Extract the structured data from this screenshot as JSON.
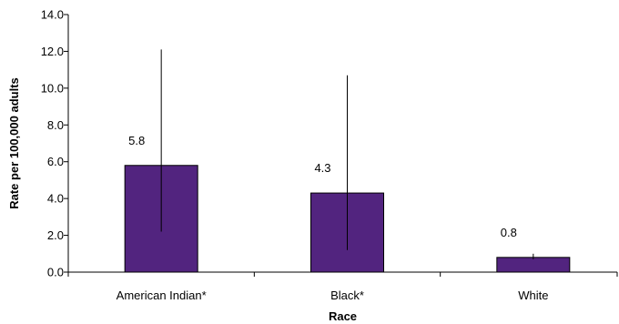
{
  "chart_data": {
    "type": "bar",
    "categories": [
      "American Indian*",
      "Black*",
      "White"
    ],
    "values": [
      5.8,
      4.3,
      0.8
    ],
    "error_bars": {
      "lower": [
        2.2,
        1.2,
        0.7
      ],
      "upper": [
        12.1,
        10.7,
        1.0
      ]
    },
    "data_labels": [
      "5.8",
      "4.3",
      "0.8"
    ],
    "xlabel": "Race",
    "ylabel": "Rate per 100,000 adults",
    "ylim": [
      0,
      14
    ],
    "y_ticks": [
      "0.0",
      "2.0",
      "4.0",
      "6.0",
      "8.0",
      "10.0",
      "12.0",
      "14.0"
    ],
    "y_tick_values": [
      0,
      2,
      4,
      6,
      8,
      10,
      12,
      14
    ],
    "grid": false,
    "colors": {
      "bar_fill": "#52247f",
      "bar_stroke": "#000000",
      "axis": "#000000",
      "error_bar": "#000000"
    }
  }
}
